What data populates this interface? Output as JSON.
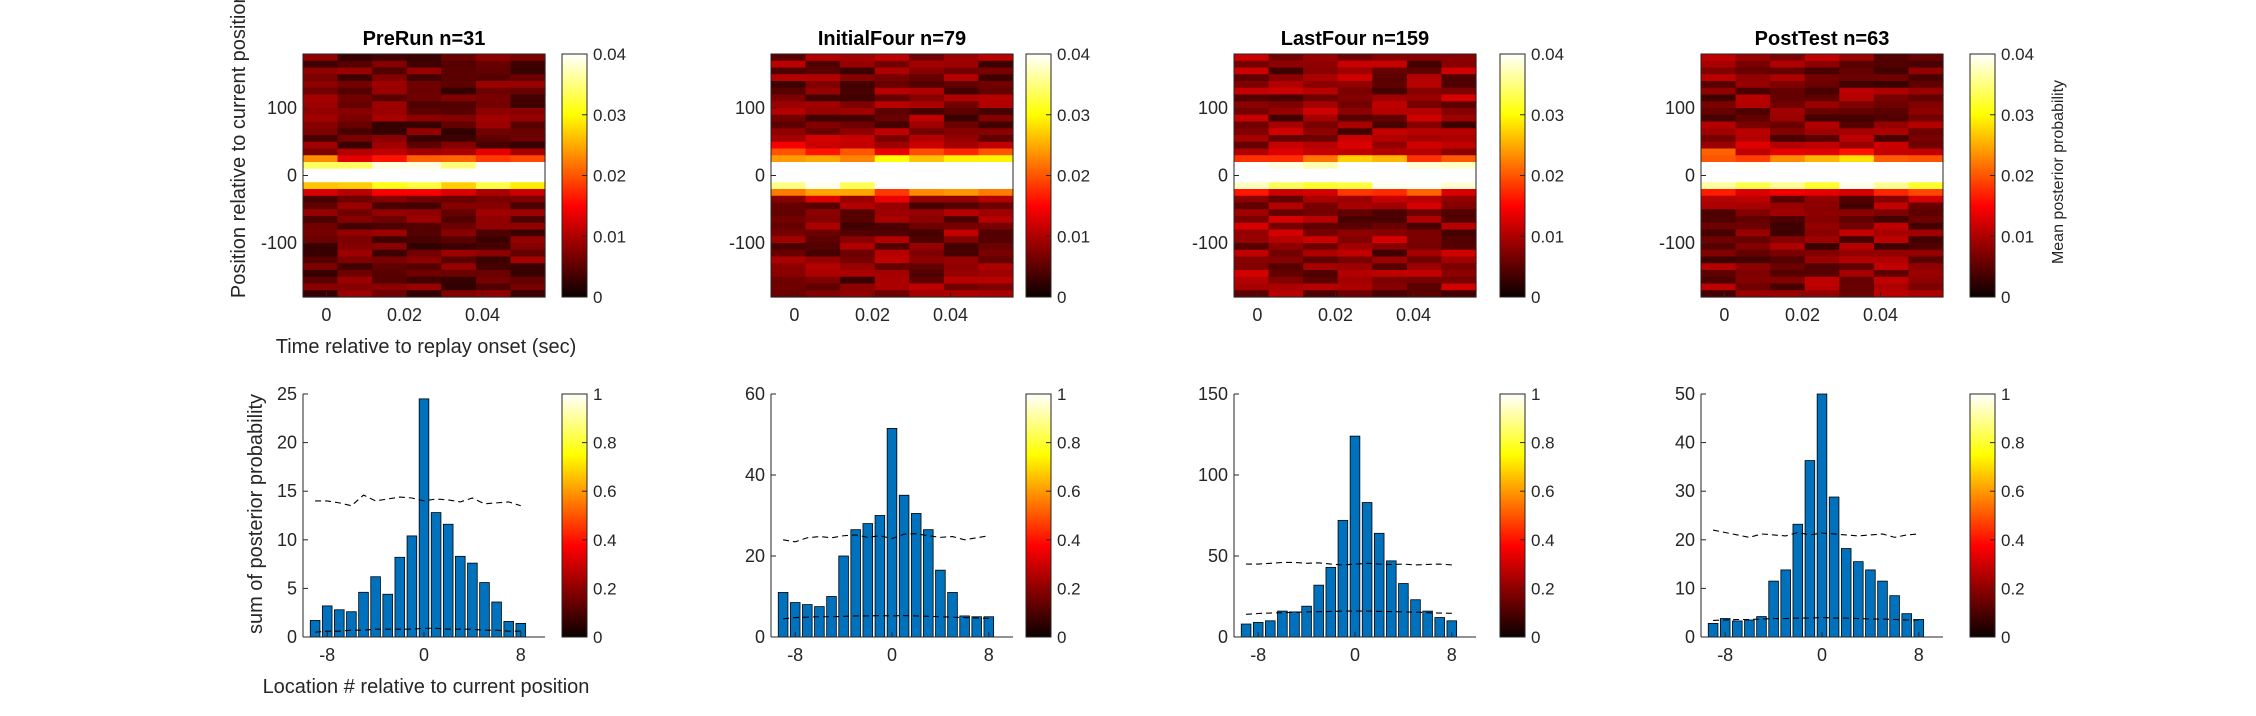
{
  "colors": {
    "bar_fill": "#0072BD",
    "bar_edge": "#000000",
    "axis": "#262626",
    "dashed": "#000000"
  },
  "colormap": "hot",
  "shared": {
    "top_ylabel": "Position relative to current position (de",
    "top_xlabel": "Time relative to replay onset (sec)",
    "bottom_ylabel": "sum of posterior probability",
    "bottom_xlabel": "Location # relative to current position",
    "top_colorbar_label": "Mean posterior probability"
  },
  "chart_data": [
    {
      "type": "heatmap",
      "title": "PreRun n=31",
      "x_ticks": [
        "0",
        "0.02",
        "0.04"
      ],
      "x_tick_values": [
        0,
        0.02,
        0.04
      ],
      "xlim": [
        -0.006,
        0.056
      ],
      "y_ticks": [
        "100",
        "0",
        "-100"
      ],
      "y_tick_values": [
        100,
        0,
        -100
      ],
      "ylim": [
        -180,
        180
      ],
      "colorbar": {
        "ticks": [
          "0",
          "0.01",
          "0.02",
          "0.03",
          "0.04"
        ],
        "range": [
          0,
          0.04
        ]
      },
      "time_bins": 7,
      "position_bins": 36,
      "peak_profile": {
        "center": 0,
        "width": 12,
        "peak": 0.045,
        "upper_extent": 45,
        "lower_extent": 20,
        "background": 0.006
      }
    },
    {
      "type": "heatmap",
      "title": "InitialFour n=79",
      "x_ticks": [
        "0",
        "0.02",
        "0.04"
      ],
      "x_tick_values": [
        0,
        0.02,
        0.04
      ],
      "xlim": [
        -0.006,
        0.056
      ],
      "y_ticks": [
        "100",
        "0",
        "-100"
      ],
      "y_tick_values": [
        100,
        0,
        -100
      ],
      "ylim": [
        -180,
        180
      ],
      "colorbar": {
        "ticks": [
          "0",
          "0.01",
          "0.02",
          "0.03",
          "0.04"
        ],
        "range": [
          0,
          0.04
        ]
      },
      "time_bins": 7,
      "position_bins": 36,
      "peak_profile": {
        "center": 0,
        "width": 14,
        "peak": 0.045,
        "upper_extent": 60,
        "lower_extent": 40,
        "background": 0.007
      }
    },
    {
      "type": "heatmap",
      "title": "LastFour n=159",
      "x_ticks": [
        "0",
        "0.02",
        "0.04"
      ],
      "x_tick_values": [
        0,
        0.02,
        0.04
      ],
      "xlim": [
        -0.006,
        0.056
      ],
      "y_ticks": [
        "100",
        "0",
        "-100"
      ],
      "y_tick_values": [
        100,
        0,
        -100
      ],
      "ylim": [
        -180,
        180
      ],
      "colorbar": {
        "ticks": [
          "0",
          "0.01",
          "0.02",
          "0.03",
          "0.04"
        ],
        "range": [
          0,
          0.04
        ]
      },
      "time_bins": 7,
      "position_bins": 36,
      "peak_profile": {
        "center": 0,
        "width": 12,
        "peak": 0.045,
        "upper_extent": 45,
        "lower_extent": 35,
        "background": 0.008
      }
    },
    {
      "type": "heatmap",
      "title": "PostTest n=63",
      "x_ticks": [
        "0",
        "0.02",
        "0.04"
      ],
      "x_tick_values": [
        0,
        0.02,
        0.04
      ],
      "xlim": [
        -0.006,
        0.056
      ],
      "y_ticks": [
        "100",
        "0",
        "-100"
      ],
      "y_tick_values": [
        100,
        0,
        -100
      ],
      "ylim": [
        -180,
        180
      ],
      "colorbar": {
        "ticks": [
          "0",
          "0.01",
          "0.02",
          "0.03",
          "0.04"
        ],
        "range": [
          0,
          0.04
        ]
      },
      "time_bins": 7,
      "position_bins": 36,
      "peak_profile": {
        "center": 0,
        "width": 13,
        "peak": 0.045,
        "upper_extent": 55,
        "lower_extent": 35,
        "background": 0.007
      }
    },
    {
      "type": "bar",
      "categories": [
        -9,
        -8,
        -7,
        -6,
        -5,
        -4,
        -3,
        -2,
        -1,
        0,
        1,
        2,
        3,
        4,
        5,
        6,
        7,
        8
      ],
      "values": [
        1.7,
        3.2,
        2.8,
        2.6,
        4.6,
        6.2,
        4.4,
        8.2,
        10.4,
        24.5,
        12.8,
        11.6,
        8.3,
        7.6,
        5.6,
        3.6,
        1.6,
        1.4
      ],
      "x_ticks": [
        "-8",
        "0",
        "8"
      ],
      "x_tick_values": [
        -8,
        0,
        8
      ],
      "xlim": [
        -10,
        10
      ],
      "y_ticks": [
        "0",
        "5",
        "10",
        "15",
        "20",
        "25"
      ],
      "y_tick_values": [
        0,
        5,
        10,
        15,
        20,
        25
      ],
      "ylim": [
        0,
        25
      ],
      "upper_dashed": [
        14,
        14,
        13.8,
        13.5,
        14.6,
        14,
        14.2,
        14.4,
        14.3,
        14,
        14.2,
        14.1,
        13.9,
        14.3,
        13.7,
        13.8,
        13.9,
        13.5
      ],
      "lower_dashed": [
        0.5,
        0.6,
        0.6,
        0.7,
        0.7,
        0.8,
        0.8,
        0.8,
        0.8,
        0.9,
        0.9,
        0.8,
        0.8,
        0.8,
        0.7,
        0.7,
        0.6,
        0.6
      ],
      "colorbar": {
        "ticks": [
          "0",
          "0.2",
          "0.4",
          "0.6",
          "0.8",
          "1"
        ],
        "range": [
          0,
          1
        ]
      }
    },
    {
      "type": "bar",
      "categories": [
        -9,
        -8,
        -7,
        -6,
        -5,
        -4,
        -3,
        -2,
        -1,
        0,
        1,
        2,
        3,
        4,
        5,
        6,
        7,
        8
      ],
      "values": [
        11,
        8.5,
        8,
        7.5,
        10,
        20,
        26.5,
        28,
        30,
        51.5,
        35,
        30.5,
        26.5,
        16.5,
        11,
        5.2,
        5,
        5
      ],
      "x_ticks": [
        "-8",
        "0",
        "8"
      ],
      "x_tick_values": [
        -8,
        0,
        8
      ],
      "xlim": [
        -10,
        10
      ],
      "y_ticks": [
        "0",
        "20",
        "40",
        "60"
      ],
      "y_tick_values": [
        0,
        20,
        40,
        60
      ],
      "ylim": [
        0,
        60
      ],
      "upper_dashed": [
        24,
        23.5,
        24.5,
        24.8,
        24.5,
        25,
        25.2,
        24.6,
        25,
        24.3,
        25.4,
        25.5,
        25,
        24.6,
        24.8,
        24,
        24.5,
        25
      ],
      "lower_dashed": [
        4.5,
        4.8,
        4.9,
        5,
        5,
        5.1,
        5.2,
        5.2,
        5.3,
        5.2,
        5.3,
        5.2,
        5.1,
        5,
        4.9,
        4.8,
        4.7,
        4.6
      ],
      "colorbar": {
        "ticks": [
          "0",
          "0.2",
          "0.4",
          "0.6",
          "0.8",
          "1"
        ],
        "range": [
          0,
          1
        ]
      }
    },
    {
      "type": "bar",
      "categories": [
        -9,
        -8,
        -7,
        -6,
        -5,
        -4,
        -3,
        -2,
        -1,
        0,
        1,
        2,
        3,
        4,
        5,
        6,
        7,
        8
      ],
      "values": [
        8,
        9,
        10,
        16,
        15.5,
        19,
        32,
        43,
        72,
        124,
        83,
        64,
        47,
        33,
        23,
        16,
        12,
        10
      ],
      "x_ticks": [
        "-8",
        "0",
        "8"
      ],
      "x_tick_values": [
        -8,
        0,
        8
      ],
      "xlim": [
        -10,
        10
      ],
      "y_ticks": [
        "0",
        "50",
        "100",
        "150"
      ],
      "y_tick_values": [
        0,
        50,
        100,
        150
      ],
      "ylim": [
        0,
        150
      ],
      "upper_dashed": [
        45,
        45,
        45.5,
        46,
        46,
        45.5,
        45.8,
        45,
        44.5,
        45,
        45.5,
        45,
        44.8,
        45,
        44.5,
        44.8,
        45,
        44.5
      ],
      "lower_dashed": [
        14,
        14.5,
        14.8,
        15,
        15.2,
        15.5,
        15.6,
        15.8,
        16,
        16,
        16,
        15.8,
        15.7,
        15.5,
        15.3,
        15,
        14.8,
        14.6
      ],
      "colorbar": {
        "ticks": [
          "0",
          "0.2",
          "0.4",
          "0.6",
          "0.8",
          "1"
        ],
        "range": [
          0,
          1
        ]
      }
    },
    {
      "type": "bar",
      "categories": [
        -9,
        -8,
        -7,
        -6,
        -5,
        -4,
        -3,
        -2,
        -1,
        0,
        1,
        2,
        3,
        4,
        5,
        6,
        7,
        8
      ],
      "values": [
        2.8,
        3.8,
        3.3,
        3.5,
        4.2,
        11.5,
        13.8,
        23.2,
        36.3,
        50,
        28.8,
        18.2,
        15.5,
        13.8,
        11.5,
        8.5,
        4.8,
        3.6
      ],
      "x_ticks": [
        "-8",
        "0",
        "8"
      ],
      "x_tick_values": [
        -8,
        0,
        8
      ],
      "xlim": [
        -10,
        10
      ],
      "y_ticks": [
        "0",
        "10",
        "20",
        "30",
        "40",
        "50"
      ],
      "y_tick_values": [
        0,
        10,
        20,
        30,
        40,
        50
      ],
      "ylim": [
        0,
        50
      ],
      "upper_dashed": [
        22,
        21.5,
        21,
        20.5,
        21.2,
        21,
        20.8,
        21.5,
        21,
        21.4,
        21.2,
        21,
        20.8,
        21,
        21.2,
        20.5,
        21,
        21.2
      ],
      "lower_dashed": [
        3.4,
        3.5,
        3.6,
        3.6,
        3.7,
        3.8,
        3.8,
        3.9,
        3.9,
        4,
        3.9,
        3.9,
        3.8,
        3.7,
        3.7,
        3.6,
        3.5,
        3.5
      ],
      "colorbar": {
        "ticks": [
          "0",
          "0.2",
          "0.4",
          "0.6",
          "0.8",
          "1"
        ],
        "range": [
          0,
          1
        ]
      }
    }
  ]
}
